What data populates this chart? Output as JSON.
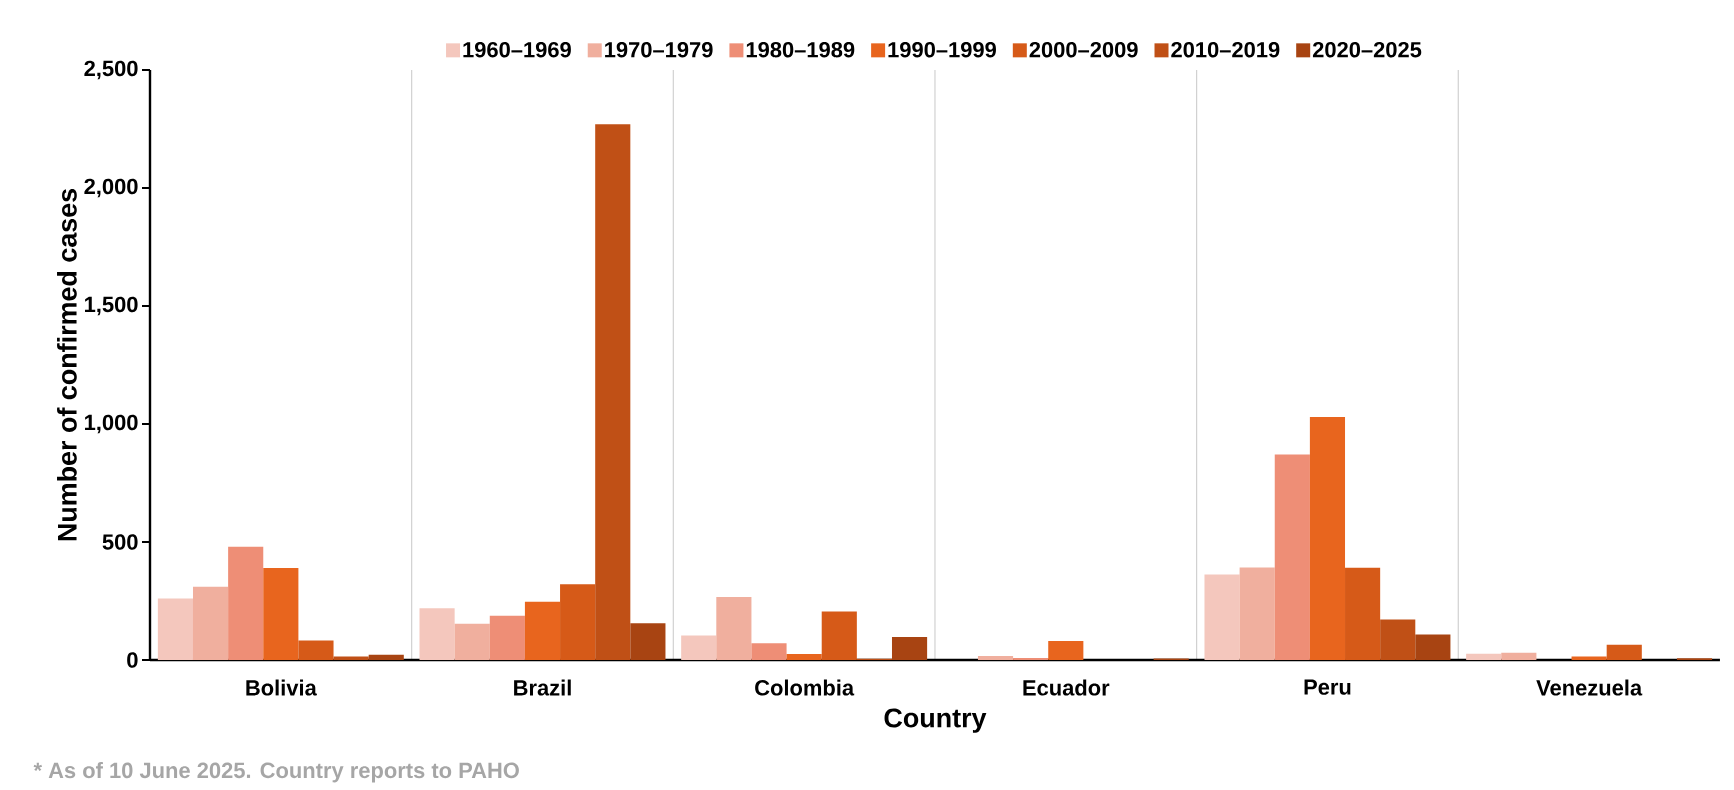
{
  "chart_data": {
    "type": "bar",
    "categories": [
      "Bolivia",
      "Brazil",
      "Colombia",
      "Ecuador",
      "Peru",
      "Venezuela"
    ],
    "series": [
      {
        "name": "1960–1969",
        "color": "#f4c7bd",
        "values": [
          261,
          219,
          104,
          0,
          362,
          26
        ]
      },
      {
        "name": "1970–1979",
        "color": "#f0af9e",
        "values": [
          310,
          154,
          267,
          17,
          392,
          31
        ]
      },
      {
        "name": "1980–1989",
        "color": "#ee8e76",
        "values": [
          480,
          187,
          71,
          9,
          871,
          0
        ]
      },
      {
        "name": "1990–1999",
        "color": "#e8651e",
        "values": [
          390,
          247,
          25,
          80,
          1030,
          15
        ]
      },
      {
        "name": "2000–2009",
        "color": "#d65a18",
        "values": [
          83,
          321,
          206,
          0,
          391,
          65
        ]
      },
      {
        "name": "2010–2019",
        "color": "#c05016",
        "values": [
          15,
          2270,
          5,
          0,
          172,
          0
        ]
      },
      {
        "name": "2020–2025",
        "color": "#a84412",
        "values": [
          22,
          156,
          97,
          6,
          108,
          7
        ]
      }
    ],
    "xlabel": "Country",
    "ylabel": "Number of confirmed cases",
    "ylim": [
      0,
      2500
    ],
    "yticks": [
      0,
      500,
      {
        "value": 1000,
        "label": "1,000"
      },
      {
        "value": 1500,
        "label": "1,500"
      },
      {
        "value": 2000,
        "label": "2,000"
      },
      {
        "value": 2500,
        "label": "2,500"
      }
    ],
    "grid": "x",
    "legend": "top",
    "annotations": [
      "* As of 10 June 2025. Country reports to PAHO"
    ]
  }
}
